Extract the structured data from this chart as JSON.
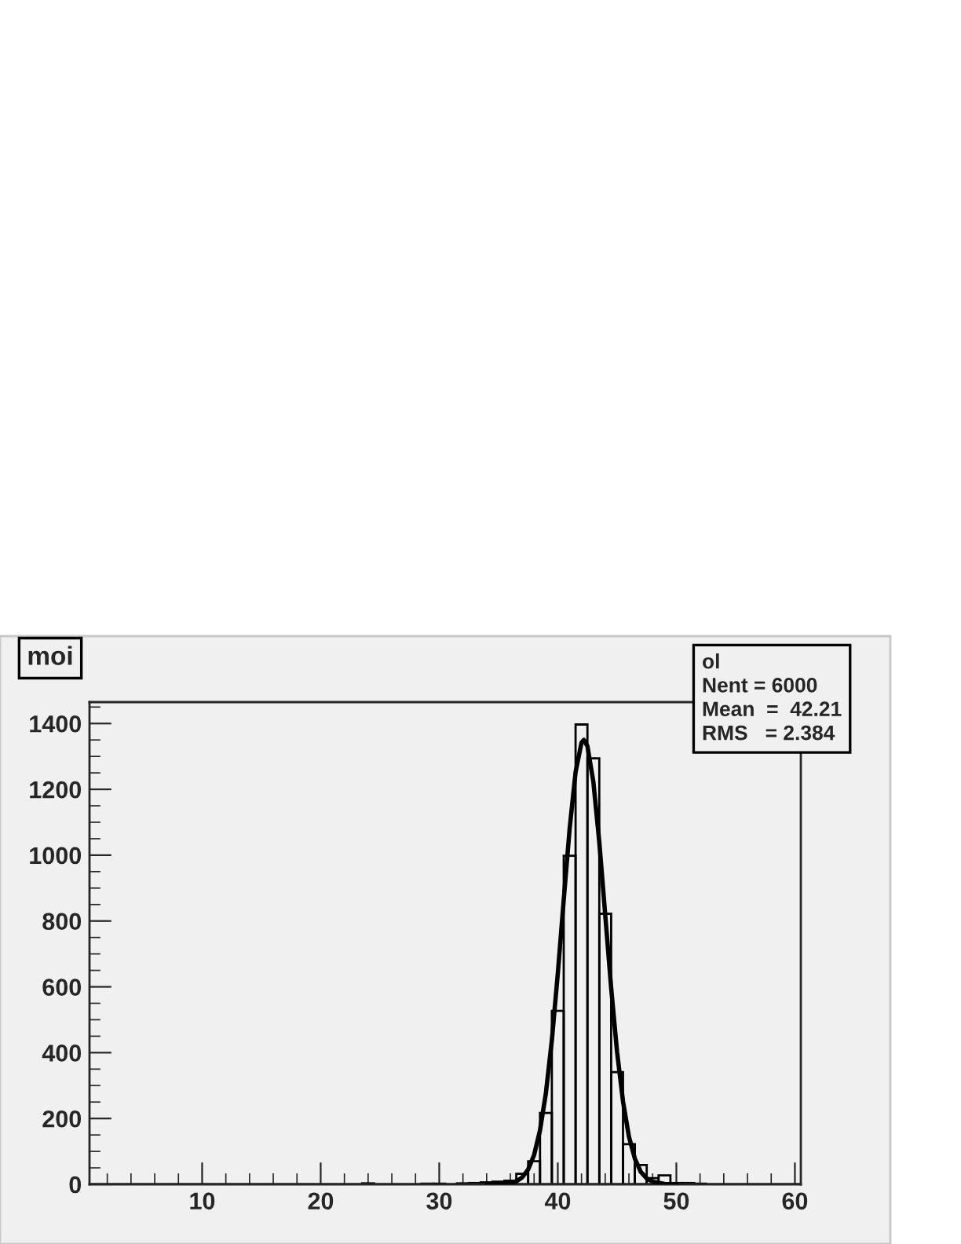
{
  "chart_data": {
    "type": "histogram",
    "title": "moi",
    "bins": [
      0.5,
      1.5,
      2.5,
      3.5,
      4.5,
      5.5,
      6.5,
      7.5,
      8.5,
      9.5,
      10.5,
      11.5,
      12.5,
      13.5,
      14.5,
      15.5,
      16.5,
      17.5,
      18.5,
      19.5,
      20.5,
      21.5,
      22.5,
      23.5,
      24.5,
      25.5,
      26.5,
      27.5,
      28.5,
      29.5,
      30.5,
      31.5,
      32.5,
      33.5,
      34.5,
      35.5,
      36.5,
      37.5,
      38.5,
      39.5,
      40.5,
      41.5,
      42.5,
      43.5,
      44.5,
      45.5,
      46.5,
      47.5,
      48.5,
      49.5,
      50.5,
      51.5,
      52.5,
      53.5,
      54.5,
      55.5,
      56.5,
      57.5,
      58.5,
      59.5,
      60.5
    ],
    "values": [
      0,
      0,
      0,
      0,
      0,
      0,
      0,
      0,
      0,
      0,
      0,
      0,
      0,
      0,
      0,
      0,
      0,
      0,
      0,
      0,
      0,
      0,
      0,
      3,
      0,
      0,
      0,
      0,
      2,
      2,
      0,
      3,
      4,
      6,
      8,
      11,
      32,
      70,
      217,
      527,
      998,
      1397,
      1294,
      822,
      341,
      122,
      59,
      19,
      27,
      4,
      4,
      2,
      0,
      0,
      0,
      0,
      0,
      0,
      0,
      0
    ],
    "color": "#000000",
    "series": [
      {
        "type": "line",
        "color": "#000000",
        "x": [
          34,
          35,
          36,
          36.5,
          37,
          37.5,
          38,
          38.5,
          39,
          39.5,
          40,
          40.5,
          41,
          41.5,
          42,
          42.2,
          42.5,
          43,
          43.5,
          44,
          44.5,
          45,
          45.5,
          46,
          46.5,
          47,
          47.5,
          48,
          49,
          50
        ],
        "values": [
          0,
          0,
          4,
          9,
          21,
          45,
          89,
          164,
          278,
          438,
          640,
          864,
          1081,
          1252,
          1342,
          1350,
          1331,
          1223,
          1040,
          819,
          597,
          402,
          252,
          145,
          78,
          38,
          18,
          8,
          1,
          0
        ]
      }
    ],
    "xlim": [
      0.5,
      60.5
    ],
    "xticks": [
      10,
      20,
      30,
      40,
      50,
      60
    ],
    "ylim": [
      0,
      1465
    ],
    "yticks": [
      0,
      200,
      400,
      600,
      800,
      1000,
      1200,
      1400
    ],
    "annotations": [
      "ol",
      "Nent = 6000",
      "Mean  =  42.21",
      "RMS   = 2.384"
    ]
  }
}
